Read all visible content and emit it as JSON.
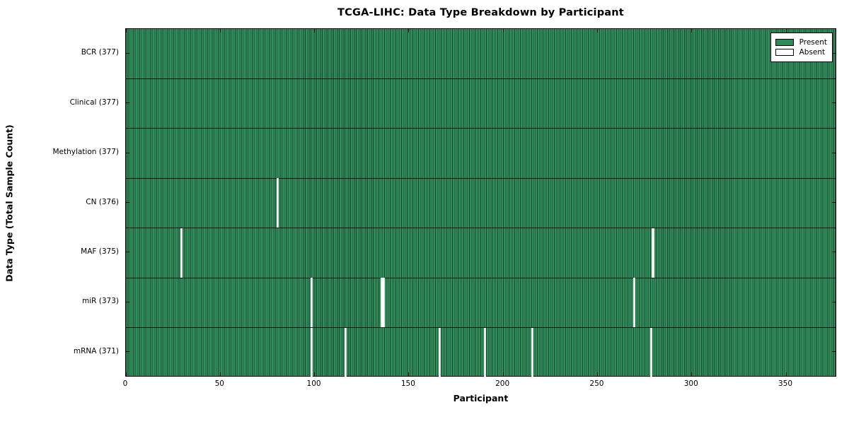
{
  "chart_data": {
    "type": "heatmap",
    "title": "TCGA-LIHC: Data Type Breakdown by Participant",
    "xlabel": "Participant",
    "ylabel": "Data Type (Total Sample Count)",
    "x_ticks": [
      0,
      50,
      100,
      150,
      200,
      250,
      300,
      350
    ],
    "xlim": [
      0,
      377
    ],
    "n_participants": 377,
    "grid": false,
    "legend_position": "upper right",
    "rows": [
      {
        "label": "BCR",
        "total": 377,
        "absent_participants": []
      },
      {
        "label": "Clinical",
        "total": 377,
        "absent_participants": []
      },
      {
        "label": "Methylation",
        "total": 377,
        "absent_participants": []
      },
      {
        "label": "CN",
        "total": 376,
        "absent_participants": [
          80
        ]
      },
      {
        "label": "MAF",
        "total": 375,
        "absent_participants": [
          29,
          279
        ]
      },
      {
        "label": "miR",
        "total": 373,
        "absent_participants": [
          98,
          135,
          136,
          269
        ]
      },
      {
        "label": "mRNA",
        "total": 371,
        "absent_participants": [
          98,
          116,
          166,
          190,
          215,
          278
        ]
      }
    ],
    "legend": [
      {
        "label": "Present",
        "color": "#2e8b57"
      },
      {
        "label": "Absent",
        "color": "#ffffff"
      }
    ],
    "colors": {
      "present": "#2e8b57",
      "absent": "#ffffff",
      "edge": "#000000",
      "background": "#ffffff"
    }
  }
}
